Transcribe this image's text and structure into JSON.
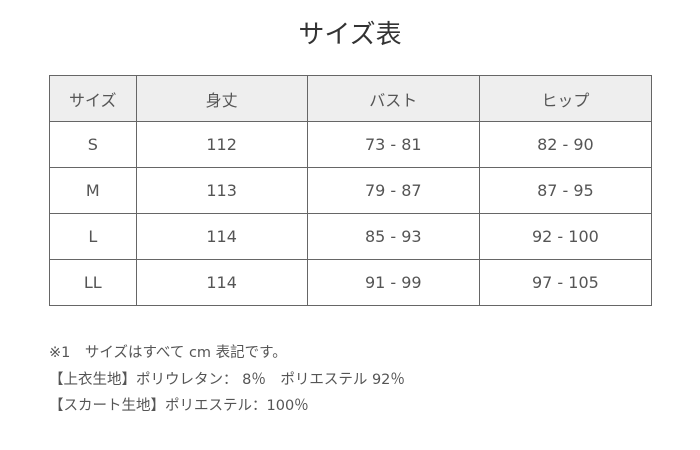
{
  "title": "サイズ表",
  "table": {
    "headers": [
      "サイズ",
      "身丈",
      "バスト",
      "ヒップ"
    ],
    "rows": [
      [
        "S",
        "112",
        "73 - 81",
        "82 - 90"
      ],
      [
        "M",
        "113",
        "79 - 87",
        "87 - 95"
      ],
      [
        "L",
        "114",
        "85 - 93",
        "92 - 100"
      ],
      [
        "LL",
        "114",
        "91 - 99",
        "97 - 105"
      ]
    ]
  },
  "notes": [
    "※1　サイズはすべて cm 表記です。",
    "【上衣生地】ポリウレタン： 8％　ポリエステル 92％",
    "【スカート生地】ポリエステル：100％"
  ]
}
